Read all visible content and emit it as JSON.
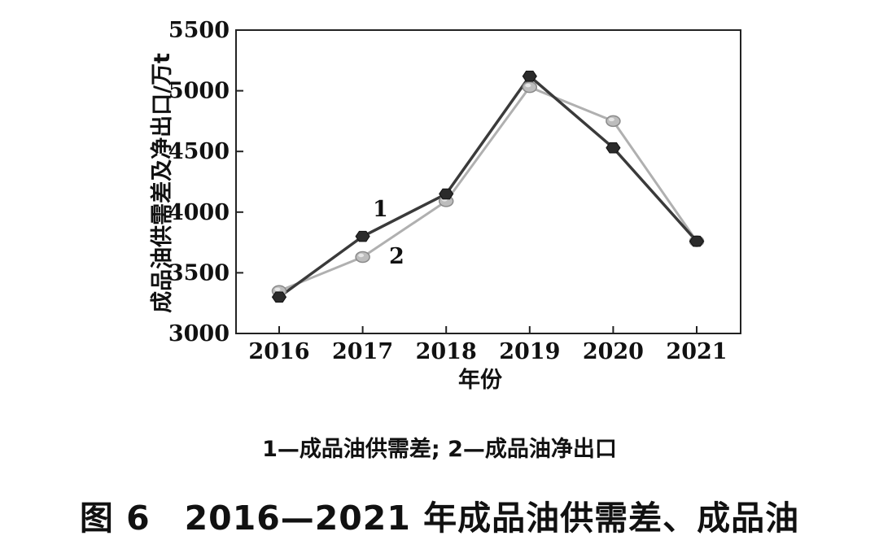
{
  "chart_data": {
    "type": "line",
    "categories": [
      "2016",
      "2017",
      "2018",
      "2019",
      "2020",
      "2021"
    ],
    "series": [
      {
        "name": "1",
        "values": [
          3300,
          3800,
          4150,
          5120,
          4530,
          3760
        ],
        "color": "#3a3a3a",
        "marker": "hexagon"
      },
      {
        "name": "2",
        "values": [
          3350,
          3630,
          4090,
          5030,
          4750,
          3760
        ],
        "color": "#b0b0b0",
        "marker": "circle"
      }
    ],
    "xlabel": "年份",
    "ylabel": "成品油供需差及净出口/万t",
    "ylim": [
      3000,
      5500
    ],
    "yticks": [
      3000,
      3500,
      4000,
      4500,
      5000,
      5500
    ],
    "grid": false,
    "legend_text": "1—成品油供需差; 2—成品油净出口",
    "caption": "图 6　2016—2021 年成品油供需差、成品油"
  }
}
